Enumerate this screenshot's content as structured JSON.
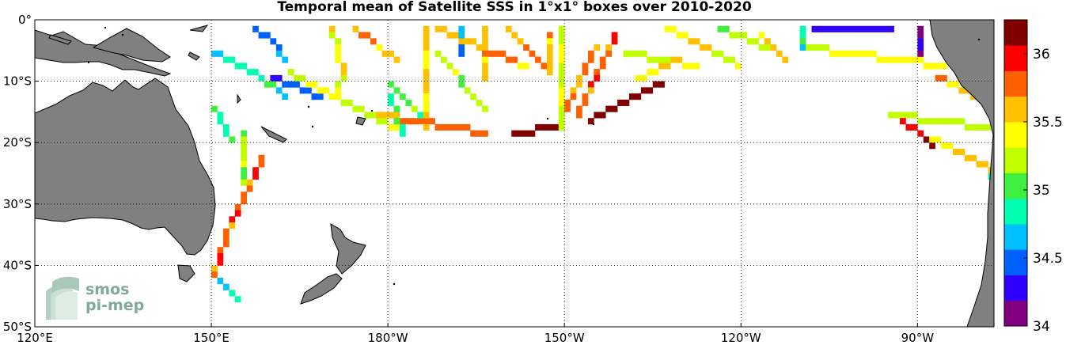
{
  "title": "Temporal mean of Satellite SSS in 1°x1° boxes over 2010-2020",
  "logo": {
    "line1": "smos",
    "line2": "pi-mep"
  },
  "map": {
    "lon_range": [
      120,
      283
    ],
    "lat_range": [
      -50,
      0
    ],
    "x_ticks": [
      {
        "lon": 120,
        "label": "120°E"
      },
      {
        "lon": 150,
        "label": "150°E"
      },
      {
        "lon": 180,
        "label": "180°W"
      },
      {
        "lon": 210,
        "label": "150°W"
      },
      {
        "lon": 240,
        "label": "120°W"
      },
      {
        "lon": 270,
        "label": "90°W"
      }
    ],
    "y_ticks": [
      {
        "lat": 0,
        "label": "0°"
      },
      {
        "lat": -10,
        "label": "10°S"
      },
      {
        "lat": -20,
        "label": "20°S"
      },
      {
        "lat": -30,
        "label": "30°S"
      },
      {
        "lat": -40,
        "label": "40°S"
      },
      {
        "lat": -50,
        "label": "50°S"
      }
    ],
    "gridlines": "dotted",
    "land_color": "#808080",
    "ocean_color": "#ffffff"
  },
  "colorbar": {
    "range": [
      34,
      36.25
    ],
    "ticks": [
      {
        "value": 34,
        "label": "34"
      },
      {
        "value": 34.5,
        "label": "34.5"
      },
      {
        "value": 35,
        "label": "35"
      },
      {
        "value": 35.5,
        "label": "35.5"
      },
      {
        "value": 36,
        "label": "36"
      }
    ],
    "colormap": [
      "#800080",
      "#3000ff",
      "#0060ff",
      "#00c0ff",
      "#00ffb0",
      "#40f040",
      "#c0ff00",
      "#ffff00",
      "#ffc000",
      "#ff6000",
      "#ff0000",
      "#800000"
    ]
  },
  "chart_data": {
    "type": "heatmap",
    "title": "Temporal mean of Satellite SSS in 1°x1° boxes over 2010-2020",
    "variable": "SSS",
    "grid": "1°x1°",
    "period": "2010-2020",
    "tracks": [
      {
        "points": [
          [
            157,
            -1
          ],
          [
            160,
            -3
          ],
          [
            162,
            -6
          ]
        ],
        "value": 34.5
      },
      {
        "points": [
          [
            160,
            -9
          ],
          [
            168,
            -12
          ]
        ],
        "value": 34.5
      },
      {
        "points": [
          [
            150,
            -5
          ],
          [
            157,
            -8
          ],
          [
            162,
            -12
          ]
        ],
        "value": 34.8
      },
      {
        "points": [
          [
            163,
            -8
          ],
          [
            170,
            -12
          ],
          [
            176,
            -15
          ],
          [
            181,
            -17
          ]
        ],
        "value": 35.3
      },
      {
        "points": [
          [
            150,
            -14
          ],
          [
            153,
            -19
          ]
        ],
        "value": 34.9
      },
      {
        "points": [
          [
            155,
            -18
          ],
          [
            155,
            -26
          ]
        ],
        "value": 35.2
      },
      {
        "points": [
          [
            158,
            -22
          ],
          [
            153,
            -32
          ],
          [
            150,
            -41
          ]
        ],
        "value": 35.8
      },
      {
        "points": [
          [
            150,
            -41
          ],
          [
            154,
            -45
          ]
        ],
        "value": 34.8
      },
      {
        "points": [
          [
            170,
            -1
          ],
          [
            172,
            -8
          ],
          [
            170,
            -12
          ]
        ],
        "value": 35.4
      },
      {
        "points": [
          [
            174,
            -1
          ],
          [
            181,
            -6
          ]
        ],
        "value": 35.6
      },
      {
        "points": [
          [
            178,
            -15
          ],
          [
            196,
            -18
          ]
        ],
        "value": 35.7
      },
      {
        "points": [
          [
            180,
            -10
          ],
          [
            185,
            -15
          ]
        ],
        "value": 35.0
      },
      {
        "points": [
          [
            180,
            -12
          ],
          [
            182,
            -18
          ]
        ],
        "value": 34.9
      },
      {
        "points": [
          [
            186,
            -1
          ],
          [
            186,
            -17
          ]
        ],
        "value": 35.5
      },
      {
        "points": [
          [
            188,
            -1
          ],
          [
            203,
            -7
          ]
        ],
        "value": 35.6
      },
      {
        "points": [
          [
            188,
            -5
          ],
          [
            196,
            -14
          ]
        ],
        "value": 35.2
      },
      {
        "points": [
          [
            192,
            -1
          ],
          [
            192,
            -5
          ]
        ],
        "value": 34.6
      },
      {
        "points": [
          [
            196,
            -1
          ],
          [
            196,
            -9
          ]
        ],
        "value": 35.6
      },
      {
        "points": [
          [
            200,
            -1
          ],
          [
            207,
            -8
          ]
        ],
        "value": 35.7
      },
      {
        "points": [
          [
            207,
            -2
          ],
          [
            207,
            -8
          ]
        ],
        "value": 35.6
      },
      {
        "points": [
          [
            201,
            -18
          ],
          [
            208,
            -17
          ]
        ],
        "value": 36.0
      },
      {
        "points": [
          [
            209,
            -1
          ],
          [
            209,
            -17
          ]
        ],
        "value": 35.3
      },
      {
        "points": [
          [
            215,
            -4
          ],
          [
            209,
            -15
          ]
        ],
        "value": 35.7
      },
      {
        "points": [
          [
            218,
            -2
          ],
          [
            212,
            -15
          ]
        ],
        "value": 35.8
      },
      {
        "points": [
          [
            214,
            -16
          ],
          [
            226,
            -10
          ]
        ],
        "value": 36.3
      },
      {
        "points": [
          [
            222,
            -9
          ],
          [
            229,
            -6
          ]
        ],
        "value": 35.5
      },
      {
        "points": [
          [
            220,
            -5
          ],
          [
            232,
            -7
          ]
        ],
        "value": 35.3
      },
      {
        "points": [
          [
            227,
            -1
          ],
          [
            239,
            -7
          ]
        ],
        "value": 35.4
      },
      {
        "points": [
          [
            236,
            -1
          ],
          [
            244,
            -4
          ]
        ],
        "value": 35.2
      },
      {
        "points": [
          [
            243,
            -2
          ],
          [
            247,
            -6
          ]
        ],
        "value": 35.6
      },
      {
        "points": [
          [
            250,
            -1
          ],
          [
            250,
            -4
          ]
        ],
        "value": 34.8
      },
      {
        "points": [
          [
            252,
            -1
          ],
          [
            265,
            -1
          ]
        ],
        "value": 34.4
      },
      {
        "points": [
          [
            251,
            -4
          ],
          [
            274,
            -7
          ]
        ],
        "value": 35.3
      },
      {
        "points": [
          [
            273,
            -9
          ],
          [
            282,
            -13
          ]
        ],
        "value": 35.6
      },
      {
        "points": [
          [
            270,
            -6
          ],
          [
            270,
            -1
          ]
        ],
        "value": 34.1
      },
      {
        "points": [
          [
            265,
            -15
          ],
          [
            289,
            -18
          ]
        ],
        "value": 35.3
      },
      {
        "points": [
          [
            266,
            -15
          ],
          [
            272,
            -20
          ]
        ],
        "value": 36.1
      },
      {
        "points": [
          [
            272,
            -19
          ],
          [
            284,
            -25
          ]
        ],
        "value": 35.5
      },
      {
        "points": [
          [
            282,
            -25
          ],
          [
            284,
            -25
          ]
        ],
        "value": 34.8
      }
    ]
  }
}
